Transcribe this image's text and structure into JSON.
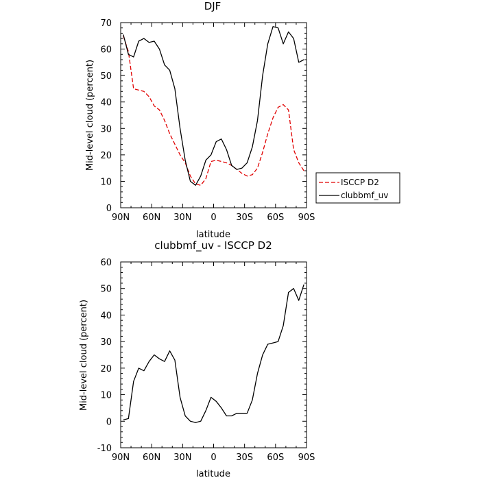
{
  "chart_data": [
    {
      "type": "line",
      "title": "DJF",
      "xlabel": "latitude",
      "ylabel": "Mid-level cloud (percent)",
      "xlim": [
        90,
        -90
      ],
      "ylim": [
        0,
        70
      ],
      "xticks": [
        90,
        60,
        30,
        0,
        -30,
        -60,
        -90
      ],
      "xtick_labels": [
        "90N",
        "60N",
        "30N",
        "0",
        "30S",
        "60S",
        "90S"
      ],
      "yticks": [
        0,
        10,
        20,
        30,
        40,
        50,
        60,
        70
      ],
      "ytick_labels": [
        "0",
        "10",
        "20",
        "30",
        "40",
        "50",
        "60",
        "70"
      ],
      "legend_position": "outside-right",
      "series": [
        {
          "name": "ISCCP D2",
          "color": "#e00000",
          "dash": "dashed",
          "x": [
            87.5,
            82.5,
            77.5,
            72.5,
            67.5,
            62.5,
            57.5,
            52.5,
            47.5,
            42.5,
            37.5,
            32.5,
            27.5,
            22.5,
            17.5,
            12.5,
            7.5,
            2.5,
            -2.5,
            -7.5,
            -12.5,
            -17.5,
            -22.5,
            -27.5,
            -32.5,
            -37.5,
            -42.5,
            -47.5,
            -52.5,
            -57.5,
            -62.5,
            -67.5,
            -72.5,
            -77.5,
            -82.5,
            -87.5
          ],
          "y": [
            65,
            59,
            45,
            44.5,
            44,
            42,
            38.5,
            37,
            33,
            28,
            24,
            20,
            17,
            12,
            9,
            8.5,
            11,
            17.5,
            18,
            17.5,
            17,
            16,
            14.5,
            13,
            12,
            12.5,
            15,
            21,
            28,
            34,
            38,
            39,
            37,
            22,
            17,
            14
          ]
        },
        {
          "name": "clubbmf_uv",
          "color": "#000000",
          "dash": "solid",
          "x": [
            87.5,
            82.5,
            77.5,
            72.5,
            67.5,
            62.5,
            57.5,
            52.5,
            47.5,
            42.5,
            37.5,
            32.5,
            27.5,
            22.5,
            17.5,
            12.5,
            7.5,
            2.5,
            -2.5,
            -7.5,
            -12.5,
            -17.5,
            -22.5,
            -27.5,
            -32.5,
            -37.5,
            -42.5,
            -47.5,
            -52.5,
            -57.5,
            -62.5,
            -67.5,
            -72.5,
            -77.5,
            -82.5,
            -87.5
          ],
          "y": [
            65.5,
            58,
            57,
            63,
            64,
            62.5,
            63,
            60,
            54,
            52,
            45,
            30,
            18,
            10,
            8.5,
            12,
            18,
            20,
            25,
            26,
            22,
            16,
            14.5,
            15,
            17,
            23,
            33,
            50,
            62,
            68.5,
            68,
            62,
            66.5,
            64,
            55,
            56
          ]
        }
      ]
    },
    {
      "type": "line",
      "title": "clubbmf_uv - ISCCP D2",
      "xlabel": "latitude",
      "ylabel": "Mid-level cloud (percent)",
      "xlim": [
        90,
        -90
      ],
      "ylim": [
        -10,
        60
      ],
      "xticks": [
        90,
        60,
        30,
        0,
        -30,
        -60,
        -90
      ],
      "xtick_labels": [
        "90N",
        "60N",
        "30N",
        "0",
        "30S",
        "60S",
        "90S"
      ],
      "yticks": [
        -10,
        0,
        10,
        20,
        30,
        40,
        50,
        60
      ],
      "ytick_labels": [
        "-10",
        "0",
        "10",
        "20",
        "30",
        "40",
        "50",
        "60"
      ],
      "series": [
        {
          "color": "#000000",
          "dash": "solid",
          "x": [
            87.5,
            82.5,
            77.5,
            72.5,
            67.5,
            62.5,
            57.5,
            52.5,
            47.5,
            42.5,
            37.5,
            32.5,
            27.5,
            22.5,
            17.5,
            12.5,
            7.5,
            2.5,
            -2.5,
            -7.5,
            -12.5,
            -17.5,
            -22.5,
            -27.5,
            -32.5,
            -37.5,
            -42.5,
            -47.5,
            -52.5,
            -57.5,
            -62.5,
            -67.5,
            -72.5,
            -77.5,
            -82.5,
            -87.5
          ],
          "y": [
            0.5,
            1,
            15,
            20,
            19,
            22.5,
            25,
            23.5,
            22.5,
            26.5,
            23,
            9,
            2,
            0,
            -0.5,
            0,
            4,
            9,
            7.5,
            5,
            2,
            2,
            3,
            3,
            3,
            8,
            18,
            25,
            29,
            29.5,
            30,
            36,
            48.5,
            50,
            45.5,
            51.5
          ]
        }
      ]
    }
  ]
}
